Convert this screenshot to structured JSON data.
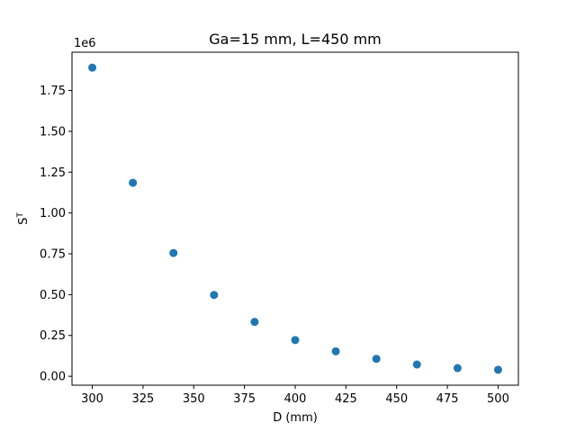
{
  "chart_data": {
    "type": "scatter",
    "title": "Ga=15 mm, L=450 mm",
    "xlabel": "D (mm)",
    "ylabel": "S^T",
    "ylabel_base": "S",
    "ylabel_sup": "T",
    "y_offset_text": "1e6",
    "x": [
      300,
      320,
      340,
      360,
      380,
      400,
      420,
      440,
      460,
      480,
      500
    ],
    "y": [
      1890000,
      1185000,
      755000,
      498000,
      333000,
      222000,
      153000,
      107000,
      72000,
      50000,
      40000
    ],
    "xlim": [
      290,
      510
    ],
    "ylim": [
      -54500,
      1984500
    ],
    "x_ticks": [
      300,
      325,
      350,
      375,
      400,
      425,
      450,
      475,
      500
    ],
    "x_tick_labels": [
      "300",
      "325",
      "350",
      "375",
      "400",
      "425",
      "450",
      "475",
      "500"
    ],
    "y_ticks": [
      0,
      250000,
      500000,
      750000,
      1000000,
      1250000,
      1500000,
      1750000
    ],
    "y_tick_labels": [
      "0.00",
      "0.25",
      "0.50",
      "0.75",
      "1.00",
      "1.25",
      "1.50",
      "1.75"
    ],
    "marker_color": "#1f77b4",
    "grid": false,
    "legend": "none"
  }
}
